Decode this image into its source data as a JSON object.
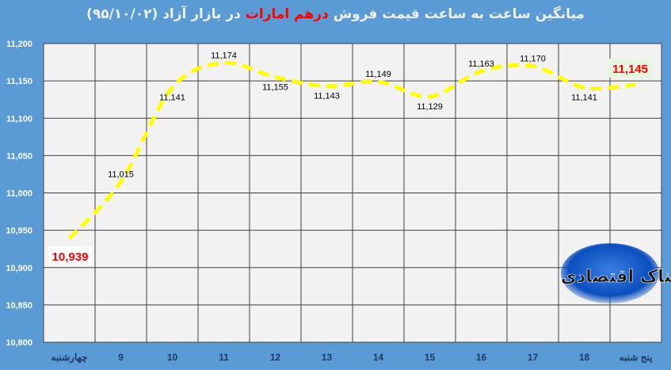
{
  "title": {
    "part1": "میانگین ساعت به ساعت قیمت فروش ",
    "highlight": "درهم امارات",
    "part2": " در بازار آزاد (۹۵/۱۰/۰۲)"
  },
  "logo_text": "تابناک اقتصادی",
  "colors": {
    "background": "#5b9bd5",
    "plot": "#f2f2f2",
    "line": "#ffff00",
    "highlight_label": "#ff0000"
  },
  "chart_data": {
    "type": "line",
    "title": "میانگین ساعت به ساعت قیمت فروش درهم امارات در بازار آزاد (۹۵/۱۰/۰۲)",
    "categories": [
      "چهارشنبه",
      "9",
      "10",
      "11",
      "12",
      "13",
      "14",
      "15",
      "16",
      "17",
      "18",
      "پنج شنبه"
    ],
    "values": [
      10939,
      11015,
      11141,
      11174,
      11155,
      11143,
      11149,
      11129,
      11163,
      11170,
      11141,
      11145
    ],
    "labels": [
      "10,939",
      "11,015",
      "11,141",
      "11,174",
      "11,155",
      "11,143",
      "11,149",
      "11,129",
      "11,163",
      "11,170",
      "11,141",
      "11,145"
    ],
    "yticks": [
      "10,800",
      "10,850",
      "10,900",
      "10,950",
      "11,000",
      "11,050",
      "11,100",
      "11,150",
      "11,200"
    ],
    "ylim": [
      10800,
      11200
    ],
    "line_style": "dashed, smoothed",
    "grid": true,
    "legend": "none"
  }
}
